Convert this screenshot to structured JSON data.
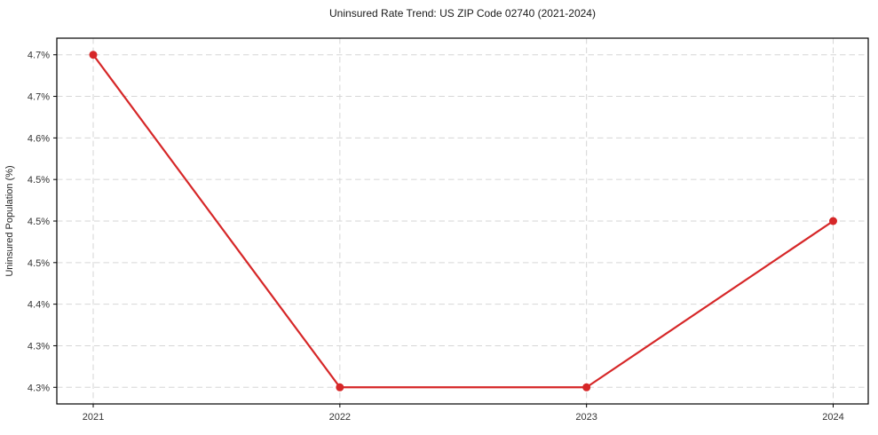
{
  "chart_data": {
    "type": "line",
    "title": "Uninsured Rate Trend: US ZIP Code 02740 (2021-2024)",
    "xlabel": "",
    "ylabel": "Uninsured Population (%)",
    "categories": [
      "2021",
      "2022",
      "2023",
      "2024"
    ],
    "series": [
      {
        "name": "Uninsured Population (%)",
        "values": [
          4.7,
          4.3,
          4.3,
          4.5
        ]
      }
    ],
    "ylim": [
      4.28,
      4.72
    ],
    "y_ticks": [
      {
        "value": 4.3,
        "label": "4.3%"
      },
      {
        "value": 4.35,
        "label": "4.3%"
      },
      {
        "value": 4.4,
        "label": "4.4%"
      },
      {
        "value": 4.45,
        "label": "4.5%"
      },
      {
        "value": 4.5,
        "label": "4.5%"
      },
      {
        "value": 4.55,
        "label": "4.5%"
      },
      {
        "value": 4.6,
        "label": "4.6%"
      },
      {
        "value": 4.65,
        "label": "4.7%"
      },
      {
        "value": 4.7,
        "label": "4.7%"
      }
    ],
    "grid": true,
    "grid_style": "dashed",
    "legend": "none",
    "colors": {
      "line": "#d62728",
      "marker": "#d62728",
      "grid": "#d6d6d6",
      "spine": "#000000",
      "text": "#333333"
    }
  }
}
